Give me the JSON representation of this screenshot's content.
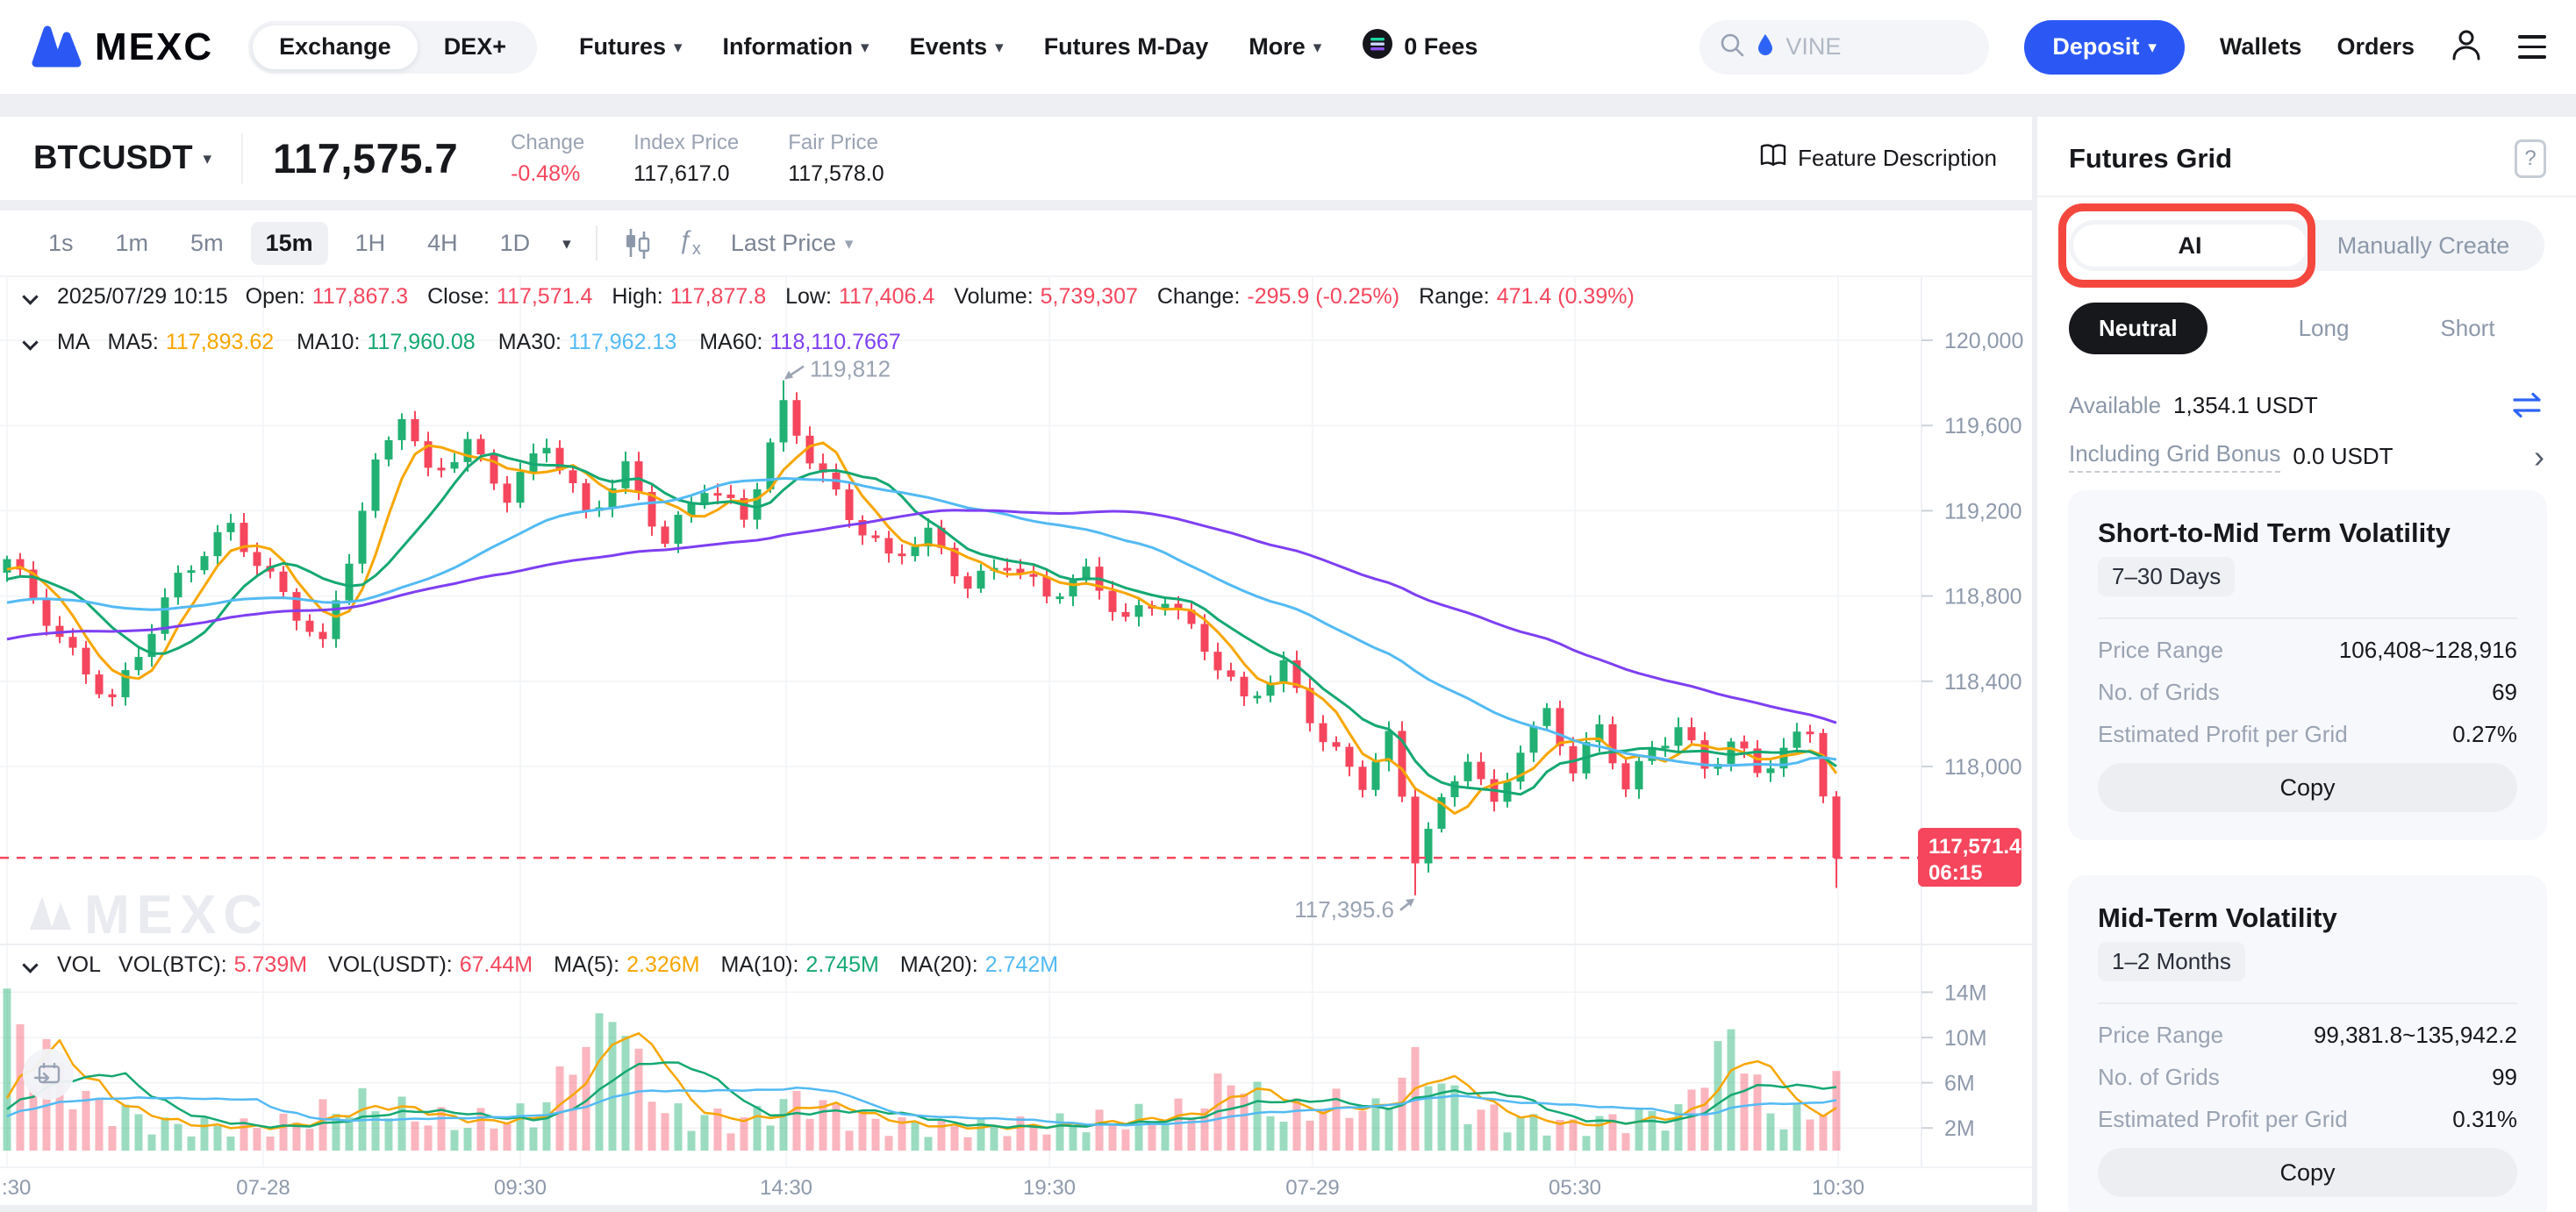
{
  "navbar": {
    "logo": "MEXC",
    "tab_group": {
      "exchange": "Exchange",
      "dex": "DEX+"
    },
    "menu": [
      {
        "label": "Futures",
        "caret": true
      },
      {
        "label": "Information",
        "caret": true
      },
      {
        "label": "Events",
        "caret": true
      },
      {
        "label": "Futures M-Day",
        "caret": false
      },
      {
        "label": "More",
        "caret": true
      }
    ],
    "fees_badge": "0 Fees",
    "search_value": "VINE",
    "deposit": "Deposit",
    "wallets": "Wallets",
    "orders": "Orders"
  },
  "ticker": {
    "symbol": "BTCUSDT",
    "last_price": "117,575.7",
    "stats": [
      {
        "label": "Change",
        "value": "-0.48%",
        "red": true
      },
      {
        "label": "Index Price",
        "value": "117,617.0",
        "red": false
      },
      {
        "label": "Fair Price",
        "value": "117,578.0",
        "red": false
      }
    ],
    "feature_description": "Feature Description"
  },
  "toolbar": {
    "intervals": [
      "1s",
      "1m",
      "5m",
      "15m",
      "1H",
      "4H",
      "1D"
    ],
    "active_interval": "15m",
    "price_type": "Last Price"
  },
  "legends": {
    "ohlc": {
      "timestamp": "2025/07/29 10:15",
      "items": [
        {
          "label": "Open:",
          "value": "117,867.3"
        },
        {
          "label": "Close:",
          "value": "117,571.4"
        },
        {
          "label": "High:",
          "value": "117,877.8"
        },
        {
          "label": "Low:",
          "value": "117,406.4"
        },
        {
          "label": "Volume:",
          "value": "5,739,307"
        },
        {
          "label": "Change:",
          "value": "-295.9 (-0.25%)"
        },
        {
          "label": "Range:",
          "value": "471.4 (0.39%)"
        }
      ]
    },
    "ma": {
      "title": "MA",
      "items": [
        {
          "label": "MA5:",
          "value": "117,893.62",
          "color": "#f7a600"
        },
        {
          "label": "MA10:",
          "value": "117,960.08",
          "color": "#15a872"
        },
        {
          "label": "MA30:",
          "value": "117,962.13",
          "color": "#53baf3"
        },
        {
          "label": "MA60:",
          "value": "118,110.7667",
          "color": "#7e3ff2"
        }
      ]
    },
    "vol": {
      "title": "VOL",
      "items": [
        {
          "label": "VOL(BTC):",
          "value": "5.739M",
          "color": "#f5465d"
        },
        {
          "label": "VOL(USDT):",
          "value": "67.44M",
          "color": "#f5465d"
        },
        {
          "label": "MA(5):",
          "value": "2.326M",
          "color": "#f7a600"
        },
        {
          "label": "MA(10):",
          "value": "2.745M",
          "color": "#15a872"
        },
        {
          "label": "MA(20):",
          "value": "2.742M",
          "color": "#53baf3"
        }
      ]
    }
  },
  "chart_data": {
    "type": "candlestick",
    "symbol": "BTCUSDT",
    "interval": "15m",
    "watermark": "MEXC",
    "y_ticks": [
      {
        "label": "120,000",
        "price": 120000
      },
      {
        "label": "119,600",
        "price": 119600
      },
      {
        "label": "119,200",
        "price": 119200
      },
      {
        "label": "118,800",
        "price": 118800
      },
      {
        "label": "118,400",
        "price": 118400
      },
      {
        "label": "118,000",
        "price": 118000
      }
    ],
    "x_ticks": [
      {
        "label": ":30",
        "x": 8,
        "edge": true
      },
      {
        "label": "07-28",
        "x": 300
      },
      {
        "label": "09:30",
        "x": 593
      },
      {
        "label": "14:30",
        "x": 896
      },
      {
        "label": "19:30",
        "x": 1196
      },
      {
        "label": "07-29",
        "x": 1496
      },
      {
        "label": "05:30",
        "x": 1795
      },
      {
        "label": "10:30",
        "x": 2095
      }
    ],
    "volume_ticks": [
      {
        "label": "14M",
        "v": 14
      },
      {
        "label": "10M",
        "v": 10
      },
      {
        "label": "6M",
        "v": 6
      },
      {
        "label": "2M",
        "v": 2
      }
    ],
    "high_annotation": {
      "text": "119,812",
      "candle": 59,
      "price": 119812
    },
    "low_annotation": {
      "text": "117,395.6",
      "candle": 107,
      "price": 117395.6
    },
    "last_price_tag": {
      "price_text": "117,571.4",
      "countdown": "06:15",
      "price": 117571.4,
      "last_low": 117430
    },
    "candle_count": 140,
    "history_count": 60,
    "price_keyframes": [
      [
        -60,
        118250
      ],
      [
        -40,
        118480
      ],
      [
        -20,
        118700
      ],
      [
        -1,
        118930
      ],
      [
        0,
        118950
      ],
      [
        4,
        118600
      ],
      [
        8,
        118330
      ],
      [
        13,
        118860
      ],
      [
        17,
        119120
      ],
      [
        21,
        118830
      ],
      [
        24,
        118560
      ],
      [
        28,
        119380
      ],
      [
        30,
        119660
      ],
      [
        32,
        119380
      ],
      [
        35,
        119540
      ],
      [
        38,
        119260
      ],
      [
        41,
        119500
      ],
      [
        44,
        119180
      ],
      [
        47,
        119420
      ],
      [
        50,
        119060
      ],
      [
        53,
        119300
      ],
      [
        56,
        119150
      ],
      [
        59,
        119700
      ],
      [
        61,
        119480
      ],
      [
        64,
        119180
      ],
      [
        67,
        118950
      ],
      [
        70,
        119080
      ],
      [
        73,
        118870
      ],
      [
        76,
        118980
      ],
      [
        79,
        118780
      ],
      [
        82,
        118880
      ],
      [
        85,
        118700
      ],
      [
        88,
        118820
      ],
      [
        91,
        118560
      ],
      [
        94,
        118280
      ],
      [
        97,
        118460
      ],
      [
        100,
        118150
      ],
      [
        103,
        117940
      ],
      [
        105,
        118120
      ],
      [
        107,
        117560
      ],
      [
        109,
        117800
      ],
      [
        111,
        118060
      ],
      [
        113,
        117820
      ],
      [
        115,
        118120
      ],
      [
        117,
        118250
      ],
      [
        119,
        117980
      ],
      [
        121,
        118150
      ],
      [
        123,
        117900
      ],
      [
        125,
        118080
      ],
      [
        127,
        118220
      ],
      [
        129,
        118000
      ],
      [
        131,
        118120
      ],
      [
        133,
        117950
      ],
      [
        135,
        118060
      ],
      [
        137,
        118160
      ],
      [
        138,
        117900
      ],
      [
        139,
        117571.4
      ]
    ],
    "volume_keyframes": [
      [
        -60,
        2.5
      ],
      [
        -1,
        2.5
      ],
      [
        0,
        13.8
      ],
      [
        2,
        7
      ],
      [
        3,
        9.2
      ],
      [
        5,
        5
      ],
      [
        8,
        3.5
      ],
      [
        12,
        2.2
      ],
      [
        20,
        2.0
      ],
      [
        27,
        4.2
      ],
      [
        34,
        2.4
      ],
      [
        40,
        3.0
      ],
      [
        46,
        12.5
      ],
      [
        50,
        3.2
      ],
      [
        56,
        2.6
      ],
      [
        60,
        4.5
      ],
      [
        66,
        2.4
      ],
      [
        72,
        2.0
      ],
      [
        78,
        2.2
      ],
      [
        84,
        2.6
      ],
      [
        90,
        3.4
      ],
      [
        93,
        6.5
      ],
      [
        97,
        3.0
      ],
      [
        101,
        4.2
      ],
      [
        104,
        3.4
      ],
      [
        107,
        8.0
      ],
      [
        111,
        3.6
      ],
      [
        115,
        2.6
      ],
      [
        119,
        2.2
      ],
      [
        123,
        2.8
      ],
      [
        127,
        3.2
      ],
      [
        131,
        10.5
      ],
      [
        134,
        3.2
      ],
      [
        137,
        2.8
      ],
      [
        139,
        5.8
      ]
    ],
    "ma_periods": [
      5,
      10,
      30,
      60
    ],
    "vol_ma_periods": [
      5,
      10,
      20
    ]
  },
  "panel": {
    "title": "Futures Grid",
    "help": "?",
    "mode_tabs": {
      "ai": "AI",
      "manual": "Manually Create"
    },
    "direction_tabs": [
      {
        "label": "Neutral",
        "active": true
      },
      {
        "label": "Long",
        "active": false
      },
      {
        "label": "Short",
        "active": false
      }
    ],
    "available_label": "Available",
    "available_value": "1,354.1 USDT",
    "bonus_label": "Including Grid Bonus",
    "bonus_value": "0.0 USDT",
    "cards": [
      {
        "title": "Short-to-Mid Term Volatility",
        "period": "7–30 Days",
        "rows": [
          {
            "label": "Price Range",
            "value": "106,408~128,916"
          },
          {
            "label": "No. of Grids",
            "value": "69"
          },
          {
            "label": "Estimated Profit per Grid",
            "value": "0.27%"
          }
        ],
        "button": "Copy"
      },
      {
        "title": "Mid-Term Volatility",
        "period": "1–2 Months",
        "rows": [
          {
            "label": "Price Range",
            "value": "99,381.8~135,942.2"
          },
          {
            "label": "No. of Grids",
            "value": "99"
          },
          {
            "label": "Estimated Profit per Grid",
            "value": "0.31%"
          }
        ],
        "button": "Copy"
      }
    ]
  },
  "colors": {
    "up": "#22b173",
    "down": "#f5465d",
    "up_vol": "rgba(34,177,115,0.45)",
    "down_vol": "rgba(245,70,93,0.40)",
    "accent_blue": "#2b58f5",
    "highlight_red": "#f4473e",
    "text_dark": "#17181c",
    "text_gray": "#8c98a9",
    "axis_gray": "#8e99ab",
    "grid_line": "#f1f3f6",
    "watermark": "#e9ebf0"
  }
}
